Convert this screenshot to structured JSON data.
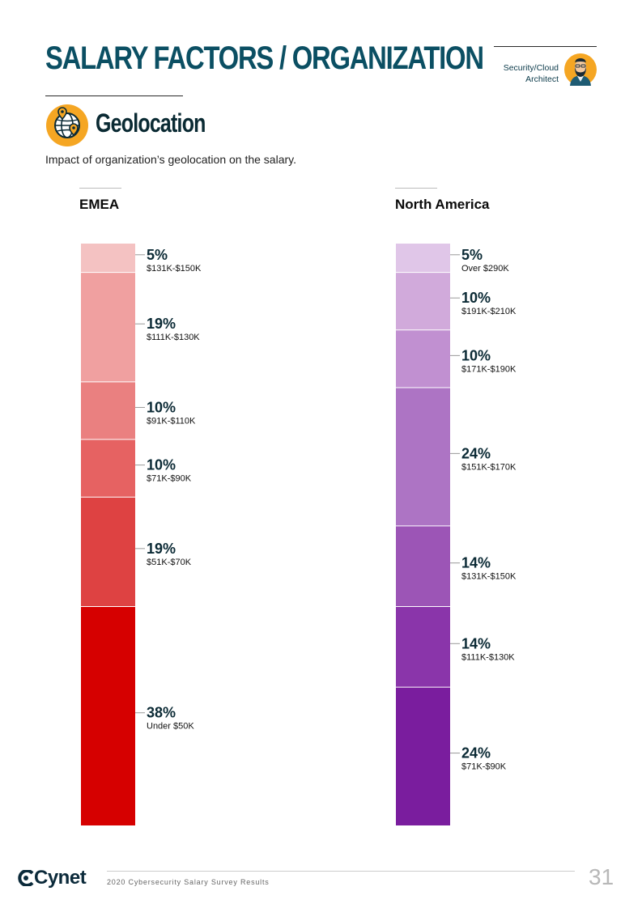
{
  "header": {
    "title": "SALARY FACTORS / ORGANIZATION",
    "role": "Security/Cloud Architect"
  },
  "section": {
    "title": "Geolocation",
    "subtitle": "Impact of organization’s geolocation on the salary."
  },
  "chart_data": [
    {
      "type": "bar",
      "stacked": true,
      "title": "EMEA",
      "segments": [
        {
          "percent": "5%",
          "value": 5,
          "label": "$131K-$150K",
          "color": "#f4c2c2"
        },
        {
          "percent": "19%",
          "value": 19,
          "label": "$111K-$130K",
          "color": "#f0a0a0"
        },
        {
          "percent": "10%",
          "value": 10,
          "label": "$91K-$110K",
          "color": "#ea8080"
        },
        {
          "percent": "10%",
          "value": 10,
          "label": "$71K-$90K",
          "color": "#e66262"
        },
        {
          "percent": "19%",
          "value": 19,
          "label": "$51K-$70K",
          "color": "#de4242"
        },
        {
          "percent": "38%",
          "value": 38,
          "label": "Under $50K",
          "color": "#d60000"
        }
      ]
    },
    {
      "type": "bar",
      "stacked": true,
      "title": "North America",
      "segments": [
        {
          "percent": "5%",
          "value": 5,
          "label": "Over $290K",
          "color": "#e0c6e8"
        },
        {
          "percent": "10%",
          "value": 10,
          "label": "$191K-$210K",
          "color": "#d1aadb"
        },
        {
          "percent": "10%",
          "value": 10,
          "label": "$171K-$190K",
          "color": "#c190d1"
        },
        {
          "percent": "24%",
          "value": 24,
          "label": "$151K-$170K",
          "color": "#ad74c4"
        },
        {
          "percent": "14%",
          "value": 14,
          "label": "$131K-$150K",
          "color": "#9c55b6"
        },
        {
          "percent": "14%",
          "value": 14,
          "label": "$111K-$130K",
          "color": "#8a35aa"
        },
        {
          "percent": "24%",
          "value": 24,
          "label": "$71K-$90K",
          "color": "#7a1d9e"
        }
      ]
    }
  ],
  "footer": {
    "brand": "Cynet",
    "text": "2020 Cybersecurity Salary Survey Results",
    "page_number": "31"
  },
  "icons": {
    "section": "globe-pin-icon",
    "role": "avatar-icon",
    "logo": "cynet-logo-icon"
  },
  "colors": {
    "title": "#0b4f63",
    "accent": "#f5a623"
  }
}
